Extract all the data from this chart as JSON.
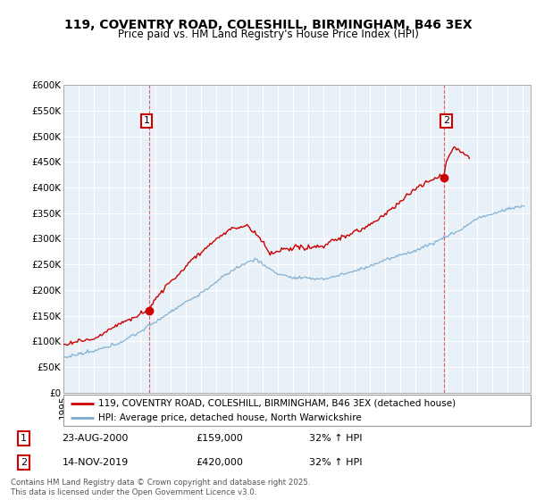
{
  "title1": "119, COVENTRY ROAD, COLESHILL, BIRMINGHAM, B46 3EX",
  "title2": "Price paid vs. HM Land Registry's House Price Index (HPI)",
  "legend_label1": "119, COVENTRY ROAD, COLESHILL, BIRMINGHAM, B46 3EX (detached house)",
  "legend_label2": "HPI: Average price, detached house, North Warwickshire",
  "annotation1_date": "23-AUG-2000",
  "annotation1_price": "£159,000",
  "annotation1_hpi": "32% ↑ HPI",
  "annotation2_date": "14-NOV-2019",
  "annotation2_price": "£420,000",
  "annotation2_hpi": "32% ↑ HPI",
  "footnote": "Contains HM Land Registry data © Crown copyright and database right 2025.\nThis data is licensed under the Open Government Licence v3.0.",
  "red_color": "#cc0000",
  "blue_color": "#7aaacc",
  "grid_color": "#ccddee",
  "bg_color": "#e8f0f8",
  "ylim_min": 0,
  "ylim_max": 600000,
  "year_start": 1995,
  "year_end": 2025
}
